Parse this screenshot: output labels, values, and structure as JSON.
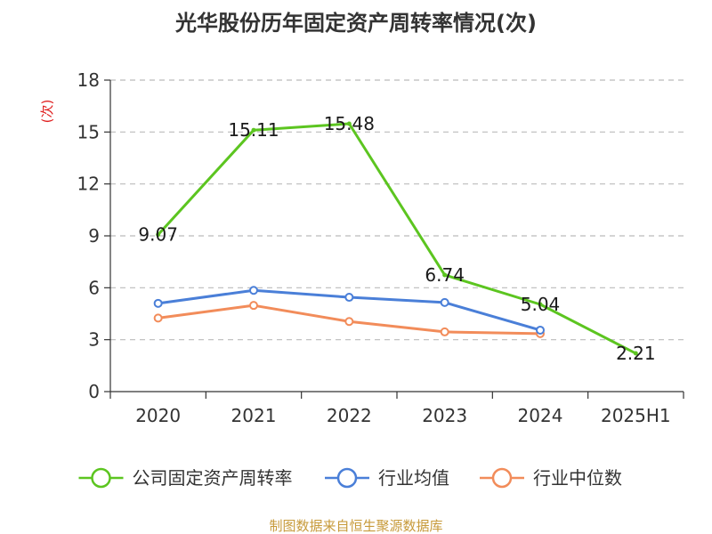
{
  "chart_data": {
    "type": "line",
    "title": "光华股份历年固定资产周转率情况(次)",
    "ylabel": "(次)",
    "xlabel": "",
    "categories": [
      "2020",
      "2021",
      "2022",
      "2023",
      "2024",
      "2025H1"
    ],
    "ylim": [
      0,
      18
    ],
    "yticks": [
      0,
      3,
      6,
      9,
      12,
      15,
      18
    ],
    "grid": true,
    "legend_position": "bottom",
    "series": [
      {
        "name": "公司固定资产周转率",
        "color": "#5cc520",
        "values": [
          9.07,
          15.11,
          15.48,
          6.74,
          5.04,
          2.21
        ],
        "labels": [
          "9.07",
          "15.11",
          "15.48",
          "6.74",
          "5.04",
          "2.21"
        ]
      },
      {
        "name": "行业均值",
        "color": "#4a7fd8",
        "values": [
          5.1,
          5.85,
          5.45,
          5.15,
          3.55,
          null
        ]
      },
      {
        "name": "行业中位数",
        "color": "#f28c5a",
        "values": [
          4.25,
          4.98,
          4.05,
          3.45,
          3.35,
          null
        ]
      }
    ],
    "ylabel_color": "#e02020",
    "source": "制图数据来自恒生聚源数据库",
    "source_color": "#c79a3a"
  }
}
